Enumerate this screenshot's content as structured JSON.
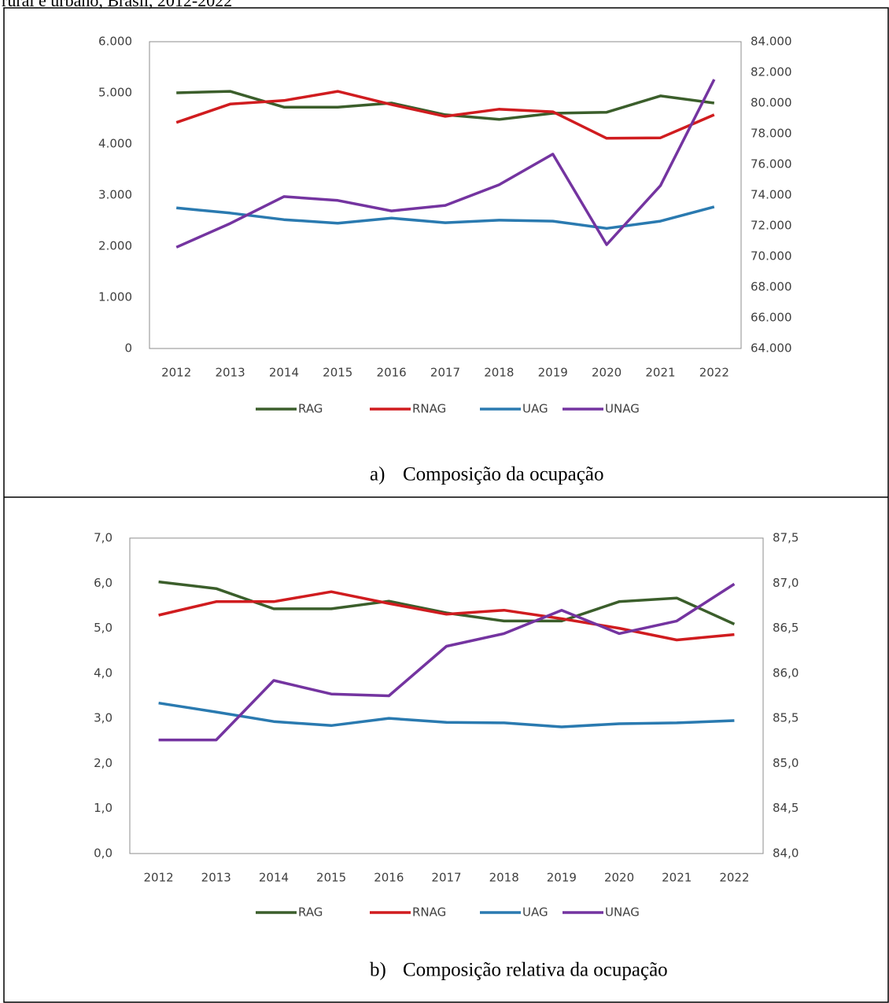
{
  "header": "rural e urbano, Brasil, 2012-2022",
  "chart_data": [
    {
      "type": "line",
      "caption_marker": "a)",
      "caption": "Composição da ocupação",
      "categories": [
        "2012",
        "2013",
        "2014",
        "2015",
        "2016",
        "2017",
        "2018",
        "2019",
        "2020",
        "2021",
        "2022"
      ],
      "ylim": [
        0,
        6000
      ],
      "yticks": [
        0,
        {
          "value": 1000,
          "label": "1.000"
        },
        {
          "value": 2000,
          "label": "2.000"
        },
        {
          "value": 3000,
          "label": "3.000"
        },
        {
          "value": 4000,
          "label": "4.000"
        },
        {
          "value": 5000,
          "label": "5.000"
        },
        {
          "value": 6000,
          "label": "6.000"
        }
      ],
      "y2lim": [
        64000,
        84000
      ],
      "y2ticks": [
        {
          "value": 64000,
          "label": "64.000"
        },
        {
          "value": 66000,
          "label": "66.000"
        },
        {
          "value": 68000,
          "label": "68.000"
        },
        {
          "value": 70000,
          "label": "70.000"
        },
        {
          "value": 72000,
          "label": "72.000"
        },
        {
          "value": 74000,
          "label": "74.000"
        },
        {
          "value": 76000,
          "label": "76.000"
        },
        {
          "value": 78000,
          "label": "78.000"
        },
        {
          "value": 80000,
          "label": "80.000"
        },
        {
          "value": 82000,
          "label": "82.000"
        },
        {
          "value": 84000,
          "label": "84.000"
        }
      ],
      "series": [
        {
          "name": "RAG",
          "color": "#3b5e2b",
          "values": [
            5000,
            5030,
            4720,
            4720,
            4800,
            4570,
            4480,
            4600,
            4620,
            4940,
            4800
          ]
        },
        {
          "name": "RNAG",
          "color": "#d01c1f",
          "values": [
            4420,
            4780,
            4850,
            5030,
            4770,
            4540,
            4680,
            4630,
            4110,
            4120,
            4570
          ]
        },
        {
          "name": "UAG",
          "color": "#2a7ab0",
          "values": [
            2750,
            2650,
            2520,
            2450,
            2550,
            2460,
            2510,
            2490,
            2350,
            2490,
            2770
          ]
        },
        {
          "name": "UNAG",
          "color": "#7434a0",
          "axis": "y2",
          "values": [
            70600,
            72150,
            73900,
            73650,
            72970,
            73330,
            74670,
            76670,
            70770,
            74620,
            81540
          ]
        }
      ]
    },
    {
      "type": "line",
      "caption_marker": "b)",
      "caption": "Composição relativa da ocupação",
      "categories": [
        "2012",
        "2013",
        "2014",
        "2015",
        "2016",
        "2017",
        "2018",
        "2019",
        "2020",
        "2021",
        "2022"
      ],
      "ylim": [
        0,
        7
      ],
      "yticks": [
        {
          "value": 0,
          "label": "0,0"
        },
        {
          "value": 1,
          "label": "1,0"
        },
        {
          "value": 2,
          "label": "2,0"
        },
        {
          "value": 3,
          "label": "3,0"
        },
        {
          "value": 4,
          "label": "4,0"
        },
        {
          "value": 5,
          "label": "5,0"
        },
        {
          "value": 6,
          "label": "6,0"
        },
        {
          "value": 7,
          "label": "7,0"
        }
      ],
      "y2lim": [
        84,
        87.5
      ],
      "y2ticks": [
        {
          "value": 84,
          "label": "84,0"
        },
        {
          "value": 84.5,
          "label": "84,5"
        },
        {
          "value": 85,
          "label": "85,0"
        },
        {
          "value": 85.5,
          "label": "85,5"
        },
        {
          "value": 86,
          "label": "86,0"
        },
        {
          "value": 86.5,
          "label": "86,5"
        },
        {
          "value": 87,
          "label": "87,0"
        },
        {
          "value": 87.5,
          "label": "87,5"
        }
      ],
      "series": [
        {
          "name": "RAG",
          "color": "#3b5e2b",
          "values": [
            6.03,
            5.88,
            5.43,
            5.43,
            5.6,
            5.34,
            5.16,
            5.16,
            5.59,
            5.67,
            5.09
          ]
        },
        {
          "name": "RNAG",
          "color": "#d01c1f",
          "values": [
            5.29,
            5.59,
            5.59,
            5.81,
            5.55,
            5.31,
            5.4,
            5.21,
            5.0,
            4.74,
            4.86
          ]
        },
        {
          "name": "UAG",
          "color": "#2a7ab0",
          "values": [
            3.34,
            3.14,
            2.93,
            2.84,
            3.0,
            2.91,
            2.9,
            2.81,
            2.88,
            2.9,
            2.95
          ]
        },
        {
          "name": "UNAG",
          "color": "#7434a0",
          "axis": "y2",
          "values": [
            85.26,
            85.26,
            85.92,
            85.77,
            85.75,
            86.3,
            86.44,
            86.7,
            86.44,
            86.58,
            86.99
          ]
        }
      ]
    }
  ]
}
